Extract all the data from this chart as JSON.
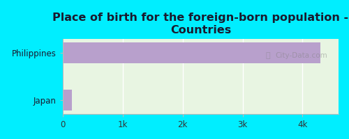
{
  "title": "Place of birth for the foreign-born population -\nCountries",
  "categories": [
    "Japan",
    "Philippines"
  ],
  "values": [
    150,
    4300
  ],
  "bar_color": "#b8a0cc",
  "background_color": "#00eeff",
  "plot_bg_color": "#e8f5e2",
  "title_fontsize": 11.5,
  "label_fontsize": 8.5,
  "tick_fontsize": 8.5,
  "xlim": [
    0,
    4600
  ],
  "xticks": [
    0,
    1000,
    2000,
    3000,
    4000
  ],
  "xtick_labels": [
    "0",
    "1k",
    "2k",
    "3k",
    "4k"
  ],
  "bar_height": 0.45,
  "watermark": "City-Data.com"
}
